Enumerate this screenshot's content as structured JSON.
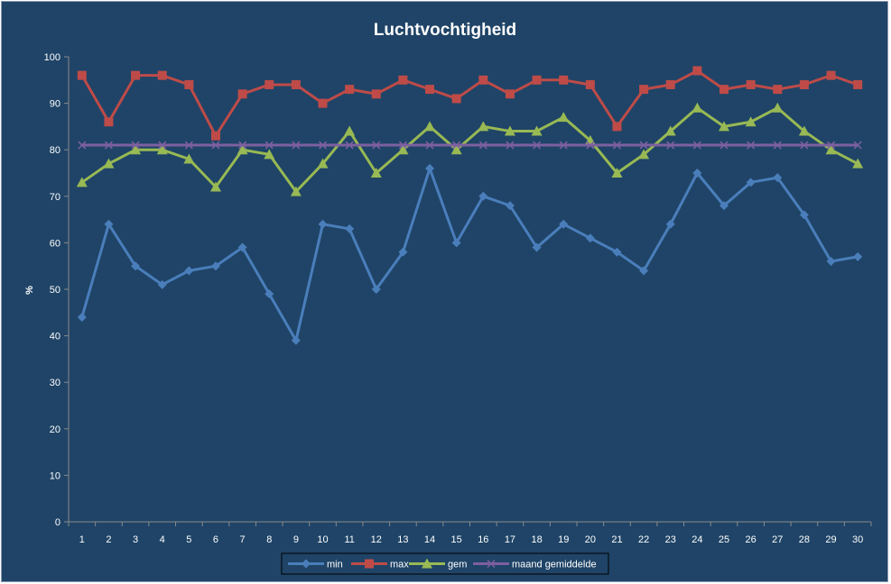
{
  "chart_data": {
    "type": "line",
    "title": "Luchtvochtigheid",
    "xlabel": "",
    "ylabel": "%",
    "ylim": [
      0,
      100
    ],
    "yticks": [
      "0",
      "10",
      "20",
      "30",
      "40",
      "50",
      "60",
      "70",
      "80",
      "90",
      "100"
    ],
    "categories": [
      "1",
      "2",
      "3",
      "4",
      "5",
      "6",
      "7",
      "8",
      "9",
      "10",
      "11",
      "12",
      "13",
      "14",
      "15",
      "16",
      "17",
      "18",
      "19",
      "20",
      "21",
      "22",
      "23",
      "24",
      "25",
      "26",
      "27",
      "28",
      "29",
      "30"
    ],
    "grid": false,
    "legend_position": "bottom",
    "series": [
      {
        "name": "min",
        "color": "#4a7ebb",
        "marker": "diamond",
        "values": [
          44,
          64,
          55,
          51,
          54,
          55,
          59,
          49,
          39,
          64,
          63,
          50,
          58,
          76,
          60,
          70,
          68,
          59,
          64,
          61,
          58,
          54,
          64,
          75,
          68,
          73,
          74,
          66,
          56,
          57
        ]
      },
      {
        "name": "max",
        "color": "#be4b48",
        "marker": "square",
        "values": [
          96,
          86,
          96,
          96,
          94,
          83,
          92,
          94,
          94,
          90,
          93,
          92,
          95,
          93,
          91,
          95,
          92,
          95,
          95,
          94,
          85,
          93,
          94,
          97,
          93,
          94,
          93,
          94,
          96,
          94
        ]
      },
      {
        "name": "gem",
        "color": "#98b954",
        "marker": "triangle",
        "values": [
          73,
          77,
          80,
          80,
          78,
          72,
          80,
          79,
          71,
          77,
          84,
          75,
          80,
          85,
          80,
          85,
          84,
          84,
          87,
          82,
          75,
          79,
          84,
          89,
          85,
          86,
          89,
          84,
          80,
          77
        ]
      },
      {
        "name": "maand gemiddelde",
        "color": "#7d60a0",
        "marker": "x",
        "values": [
          81,
          81,
          81,
          81,
          81,
          81,
          81,
          81,
          81,
          81,
          81,
          81,
          81,
          81,
          81,
          81,
          81,
          81,
          81,
          81,
          81,
          81,
          81,
          81,
          81,
          81,
          81,
          81,
          81,
          81
        ]
      }
    ]
  }
}
